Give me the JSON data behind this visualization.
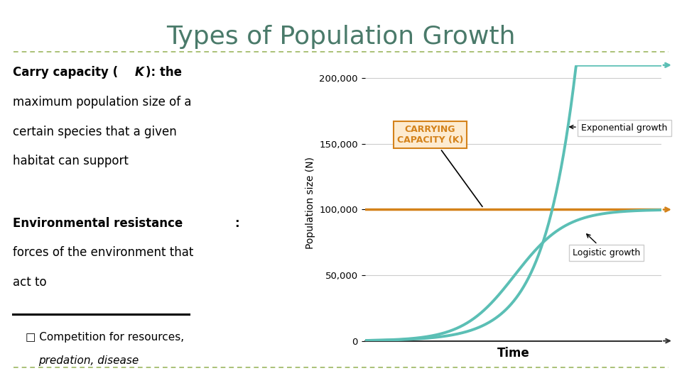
{
  "title": "Types of Population Growth",
  "title_color": "#4a7a6a",
  "title_fontsize": 26,
  "bg_color": "#ffffff",
  "K": 100000,
  "ylim": [
    0,
    210000
  ],
  "yticks": [
    0,
    50000,
    100000,
    150000,
    200000
  ],
  "ytick_labels": [
    "0",
    "50,000",
    "100,000",
    "150,000",
    "200,000"
  ],
  "logistic_color": "#5bbfb5",
  "exponential_color": "#5bbfb5",
  "carrying_line_color": "#d4821a",
  "grid_color": "#cccccc",
  "axis_color": "#333333",
  "carrying_label": "CARRYING\nCAPACITY (K)",
  "carrying_label_color": "#d4821a",
  "exp_label": "Exponential growth",
  "log_label": "Logistic growth",
  "xlabel": "Time",
  "ylabel": "Population size (N)",
  "separator_color": "#8aaa44",
  "bullet_icon_color": "#8aaa44"
}
